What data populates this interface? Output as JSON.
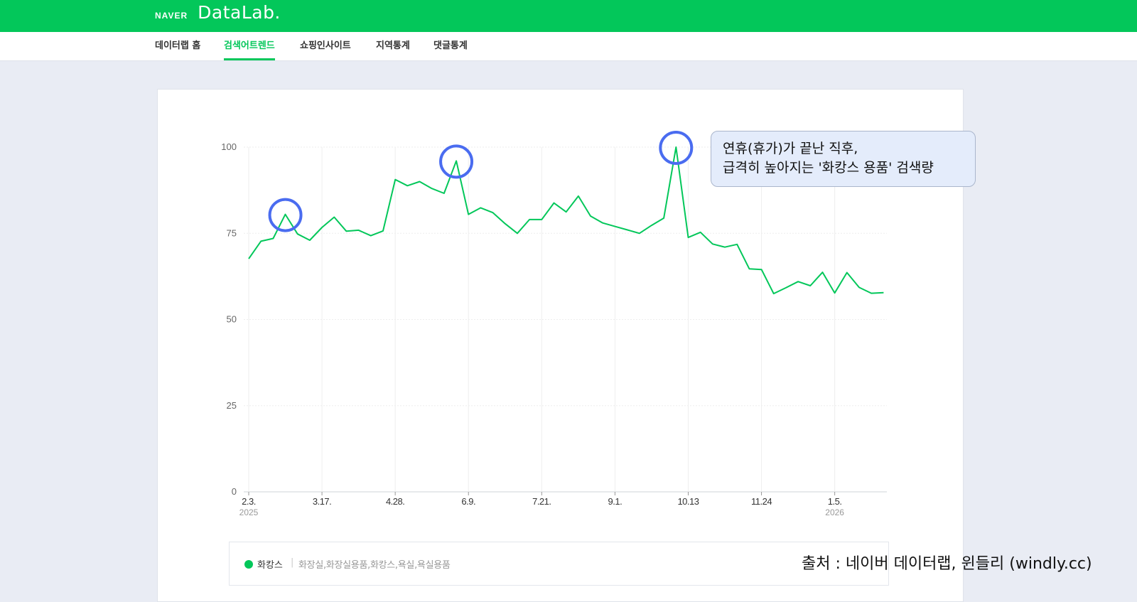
{
  "header": {
    "brand_naver": "NAVER",
    "brand_datalab": "DataLab."
  },
  "nav": {
    "items": [
      {
        "label": "데이터랩 홈",
        "active": false
      },
      {
        "label": "검색어트렌드",
        "active": true
      },
      {
        "label": "쇼핑인사이트",
        "active": false
      },
      {
        "label": "지역통계",
        "active": false
      },
      {
        "label": "댓글통계",
        "active": false
      }
    ]
  },
  "callout": {
    "line1": "연휴(휴가)가 끝난 직후,",
    "line2": "급격히 높아지는 '화캉스 용품' 검색량"
  },
  "legend": {
    "series_name": "화캉스",
    "separator": "|",
    "terms": "화장실,화장실용품,화캉스,욕실,욕실용품"
  },
  "source": "출처 : 네이버 데이터랩, 윈들리 (windly.cc)",
  "colors": {
    "brand_green": "#03c75a",
    "highlight_circle": "#4a6cf0"
  },
  "chart_data": {
    "type": "line",
    "ylim": [
      0,
      100
    ],
    "y_ticks": [
      "0",
      "25",
      "50",
      "75",
      "100"
    ],
    "x_ticks": [
      {
        "label": "2.3.",
        "sub": "2025",
        "index": 0
      },
      {
        "label": "3.17.",
        "sub": "",
        "index": 6
      },
      {
        "label": "4.28.",
        "sub": "",
        "index": 12
      },
      {
        "label": "6.9.",
        "sub": "",
        "index": 18
      },
      {
        "label": "7.21.",
        "sub": "",
        "index": 24
      },
      {
        "label": "9.1.",
        "sub": "",
        "index": 30
      },
      {
        "label": "10.13",
        "sub": "",
        "index": 36
      },
      {
        "label": "11.24",
        "sub": "",
        "index": 42
      },
      {
        "label": "1.5.",
        "sub": "2026",
        "index": 48
      }
    ],
    "grid": true,
    "series": [
      {
        "name": "화캉스",
        "color": "#03c75a",
        "values": [
          67.6,
          72.7,
          73.5,
          80.5,
          74.8,
          73.0,
          76.7,
          79.7,
          75.6,
          75.9,
          74.3,
          75.7,
          90.6,
          88.8,
          90.0,
          88.0,
          86.6,
          96.0,
          80.5,
          82.4,
          81.0,
          77.8,
          75.0,
          79.0,
          79.0,
          83.8,
          81.2,
          85.8,
          80.0,
          78.0,
          77.0,
          76.0,
          75.0,
          77.3,
          79.4,
          100.0,
          73.8,
          75.3,
          71.9,
          71.0,
          71.8,
          64.7,
          64.5,
          57.5,
          59.2,
          61.0,
          59.8,
          63.7,
          57.7,
          63.6,
          59.3,
          57.6,
          57.8
        ]
      }
    ],
    "highlights": [
      3,
      17,
      35
    ]
  }
}
